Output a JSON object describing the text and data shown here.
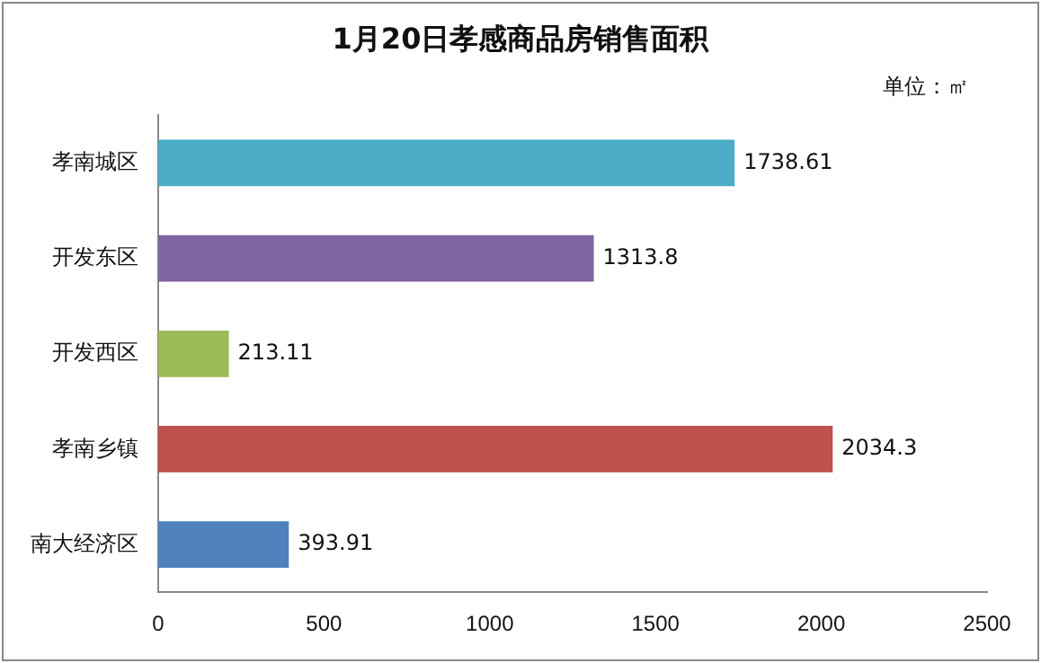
{
  "chart_data": {
    "type": "bar",
    "orientation": "horizontal",
    "title": "1月20日孝感商品房销售面积",
    "annotations": [
      "单位：㎡"
    ],
    "categories": [
      "孝南城区",
      "开发东区",
      "开发西区",
      "孝南乡镇",
      "南大经济区"
    ],
    "values": [
      1738.61,
      1313.8,
      213.11,
      2034.3,
      393.91
    ],
    "colors": [
      "#4bacc6",
      "#8064a2",
      "#9bbb59",
      "#c0504d",
      "#4f81bd"
    ],
    "xlim": [
      0,
      2500
    ],
    "xticks": [
      0,
      500,
      1000,
      1500,
      2000,
      2500
    ],
    "data_labels": true,
    "legend": false,
    "grid": false
  }
}
